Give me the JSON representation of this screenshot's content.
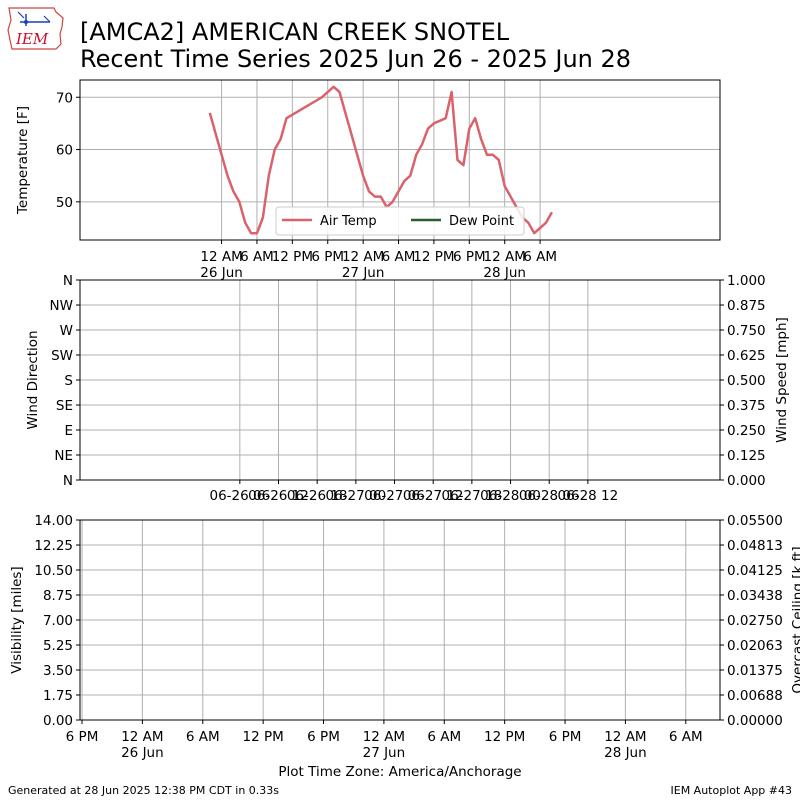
{
  "header": {
    "logo_text": "IEM",
    "title_line1": "[AMCA2] AMERICAN CREEK SNOTEL",
    "title_line2": "Recent Time Series 2025 Jun 26 - 2025 Jun 28"
  },
  "footer": {
    "generated": "Generated at 28 Jun 2025 12:38 PM CDT in 0.33s",
    "app": "IEM Autoplot App #43"
  },
  "colors": {
    "air_temp": "#d9626b",
    "dew_point": "#2e5e2e",
    "ceiling_label": "#008000"
  },
  "chart_data": [
    {
      "type": "line",
      "ylabel": "Temperature [F]",
      "ylim": [
        42.7,
        73.3
      ],
      "xlim": [
        -24,
        84.5
      ],
      "grid": true,
      "legend_placement": "lower-center",
      "x_tick_labels": [
        {
          "x": 0,
          "lines": [
            "12 AM",
            "26 Jun"
          ]
        },
        {
          "x": 6,
          "lines": [
            "6 AM"
          ]
        },
        {
          "x": 12,
          "lines": [
            "12 PM"
          ]
        },
        {
          "x": 18,
          "lines": [
            "6 PM"
          ]
        },
        {
          "x": 24,
          "lines": [
            "12 AM",
            "27 Jun"
          ]
        },
        {
          "x": 30,
          "lines": [
            "6 AM"
          ]
        },
        {
          "x": 36,
          "lines": [
            "12 PM"
          ]
        },
        {
          "x": 42,
          "lines": [
            "6 PM"
          ]
        },
        {
          "x": 48,
          "lines": [
            "12 AM",
            "28 Jun"
          ]
        },
        {
          "x": 54,
          "lines": [
            "6 AM"
          ]
        }
      ],
      "y_ticks": [
        50,
        60,
        70
      ],
      "series": [
        {
          "name": "Air Temp",
          "x": [
            -2,
            1,
            2,
            3,
            4,
            5,
            6,
            7,
            8,
            9,
            10,
            11,
            17,
            19,
            20,
            24,
            25,
            26,
            27,
            28,
            29,
            30,
            31,
            32,
            33,
            34,
            35,
            36,
            38,
            39,
            40,
            41,
            42,
            43,
            44,
            45,
            46,
            47,
            48,
            49,
            50,
            51,
            52,
            53,
            54,
            55,
            56
          ],
          "y": [
            67,
            55,
            52,
            50,
            46,
            44,
            44,
            47,
            55,
            60,
            62,
            66,
            70,
            72,
            71,
            55,
            52,
            51,
            51,
            49,
            50,
            52,
            54,
            55,
            59,
            61,
            64,
            65,
            66,
            71,
            58,
            57,
            64,
            66,
            62,
            59,
            59,
            58,
            53,
            51,
            49,
            47,
            46,
            44,
            45,
            46,
            48
          ]
        },
        {
          "name": "Dew Point",
          "x": [],
          "y": []
        }
      ]
    },
    {
      "type": "scatter",
      "ylabel": "Wind Direction",
      "y2label": "Wind Speed [mph]",
      "grid": true,
      "xlim": [
        -18.8,
        80.5
      ],
      "y_ticks": [
        "N",
        "NE",
        "E",
        "SE",
        "S",
        "SW",
        "W",
        "NW",
        "N"
      ],
      "y2_ticks": [
        "0.000",
        "0.125",
        "0.250",
        "0.375",
        "0.500",
        "0.625",
        "0.750",
        "0.875",
        "1.000"
      ],
      "x_tick_labels": [
        "06-26 06",
        "06-26 12",
        "06-26 18",
        "06-27 00",
        "06-27 06",
        "06-27 12",
        "06-27 18",
        "06-28 00",
        "06-28 06",
        "06-28 12"
      ],
      "series": []
    },
    {
      "type": "line",
      "ylabel": "Visibility [miles]",
      "y2label": "Overcast Ceiling [k ft]",
      "grid": true,
      "ylim": [
        0,
        14
      ],
      "y2lim": [
        0,
        0.055
      ],
      "y_ticks": [
        "0.00",
        "1.75",
        "3.50",
        "5.25",
        "7.00",
        "8.75",
        "10.50",
        "12.25",
        "14.00"
      ],
      "y2_ticks": [
        "0.00000",
        "0.00688",
        "0.01375",
        "0.02063",
        "0.02750",
        "0.03438",
        "0.04125",
        "0.04813",
        "0.05500"
      ],
      "xlim": [
        -6.2,
        57.4
      ],
      "x_tick_labels": [
        {
          "x": -6,
          "lines": [
            "6 PM"
          ]
        },
        {
          "x": 0,
          "lines": [
            "12 AM",
            "26 Jun"
          ]
        },
        {
          "x": 6,
          "lines": [
            "6 AM"
          ]
        },
        {
          "x": 12,
          "lines": [
            "12 PM"
          ]
        },
        {
          "x": 18,
          "lines": [
            "6 PM"
          ]
        },
        {
          "x": 24,
          "lines": [
            "12 AM",
            "27 Jun"
          ]
        },
        {
          "x": 30,
          "lines": [
            "6 AM"
          ]
        },
        {
          "x": 36,
          "lines": [
            "12 PM"
          ]
        },
        {
          "x": 42,
          "lines": [
            "6 PM"
          ]
        },
        {
          "x": 48,
          "lines": [
            "12 AM",
            "28 Jun"
          ]
        },
        {
          "x": 54,
          "lines": [
            "6 AM"
          ]
        }
      ],
      "xlabel": "Plot Time Zone: America/Anchorage",
      "series": []
    }
  ]
}
